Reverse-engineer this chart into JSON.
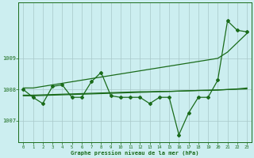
{
  "title": "Graphe pression niveau de la mer (hPa)",
  "background_color": "#cceef0",
  "line_color": "#1a6b1a",
  "grid_color": "#a8c8c8",
  "x_ticks": [
    0,
    1,
    2,
    3,
    4,
    5,
    6,
    7,
    8,
    9,
    10,
    11,
    12,
    13,
    14,
    15,
    16,
    17,
    18,
    19,
    20,
    21,
    22,
    23
  ],
  "y_ticks": [
    1007,
    1008,
    1009
  ],
  "ylim": [
    1006.3,
    1010.8
  ],
  "xlim": [
    -0.5,
    23.5
  ],
  "main_data": [
    1008.0,
    1007.75,
    1007.55,
    1008.1,
    1008.15,
    1007.75,
    1007.75,
    1008.25,
    1008.55,
    1007.8,
    1007.75,
    1007.75,
    1007.75,
    1007.55,
    1007.75,
    1007.75,
    1006.55,
    1007.25,
    1007.75,
    1007.75,
    1008.3,
    1010.2,
    1009.9,
    1009.85
  ],
  "upper_line": [
    1008.05,
    1008.05,
    1008.1,
    1008.15,
    1008.2,
    1008.25,
    1008.3,
    1008.35,
    1008.4,
    1008.45,
    1008.5,
    1008.55,
    1008.6,
    1008.65,
    1008.7,
    1008.75,
    1008.8,
    1008.85,
    1008.9,
    1008.95,
    1009.0,
    1009.2,
    1009.5,
    1009.8
  ],
  "lower_line": [
    1007.8,
    1007.8,
    1007.81,
    1007.82,
    1007.83,
    1007.84,
    1007.85,
    1007.86,
    1007.87,
    1007.88,
    1007.89,
    1007.9,
    1007.91,
    1007.92,
    1007.93,
    1007.94,
    1007.95,
    1007.96,
    1007.97,
    1007.98,
    1007.99,
    1008.0,
    1008.01,
    1008.02
  ],
  "mid_line": [
    1007.82,
    1007.82,
    1007.83,
    1007.84,
    1007.85,
    1007.86,
    1007.87,
    1007.88,
    1007.89,
    1007.9,
    1007.91,
    1007.92,
    1007.93,
    1007.93,
    1007.94,
    1007.94,
    1007.95,
    1007.96,
    1007.97,
    1007.97,
    1007.98,
    1008.0,
    1008.02,
    1008.05
  ]
}
